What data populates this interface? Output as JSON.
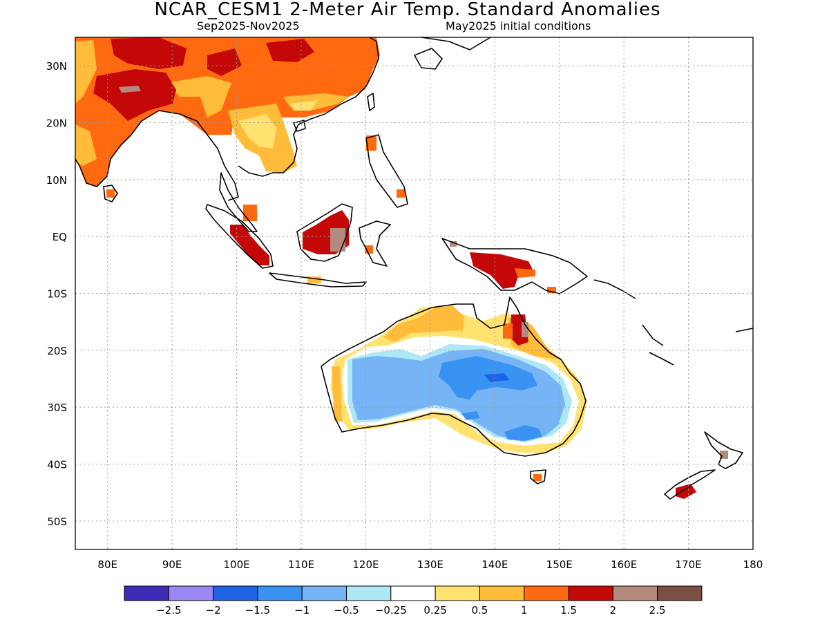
{
  "header": {
    "title": "NCAR_CESM1 2-Meter Air Temp. Standard Anomalies",
    "period": "Sep2025-Nov2025",
    "init": "May2025 initial conditions"
  },
  "map": {
    "lon_range": [
      75,
      180
    ],
    "lat_range": [
      -55,
      35
    ],
    "lon_ticks": [
      "80E",
      "90E",
      "100E",
      "110E",
      "120E",
      "130E",
      "140E",
      "150E",
      "160E",
      "170E",
      "180"
    ],
    "lat_ticks": [
      "30N",
      "20N",
      "10N",
      "EQ",
      "10S",
      "20S",
      "30S",
      "40S",
      "50S"
    ],
    "grid": "dotted"
  },
  "legend": {
    "placement": "bottom",
    "colors": [
      "#3d2bb8",
      "#9b87f2",
      "#1f64e6",
      "#3a93f2",
      "#76b4f5",
      "#aee8f7",
      "#ffffff",
      "#ffe270",
      "#ffbc3a",
      "#ff6a10",
      "#c40808",
      "#b58a7e",
      "#7a4f45"
    ],
    "labels": [
      "−2.5",
      "−2",
      "−1.5",
      "−1",
      "−0.5",
      "−0.25",
      "0.25",
      "0.5",
      "1",
      "1.5",
      "2",
      "2.5"
    ]
  }
}
